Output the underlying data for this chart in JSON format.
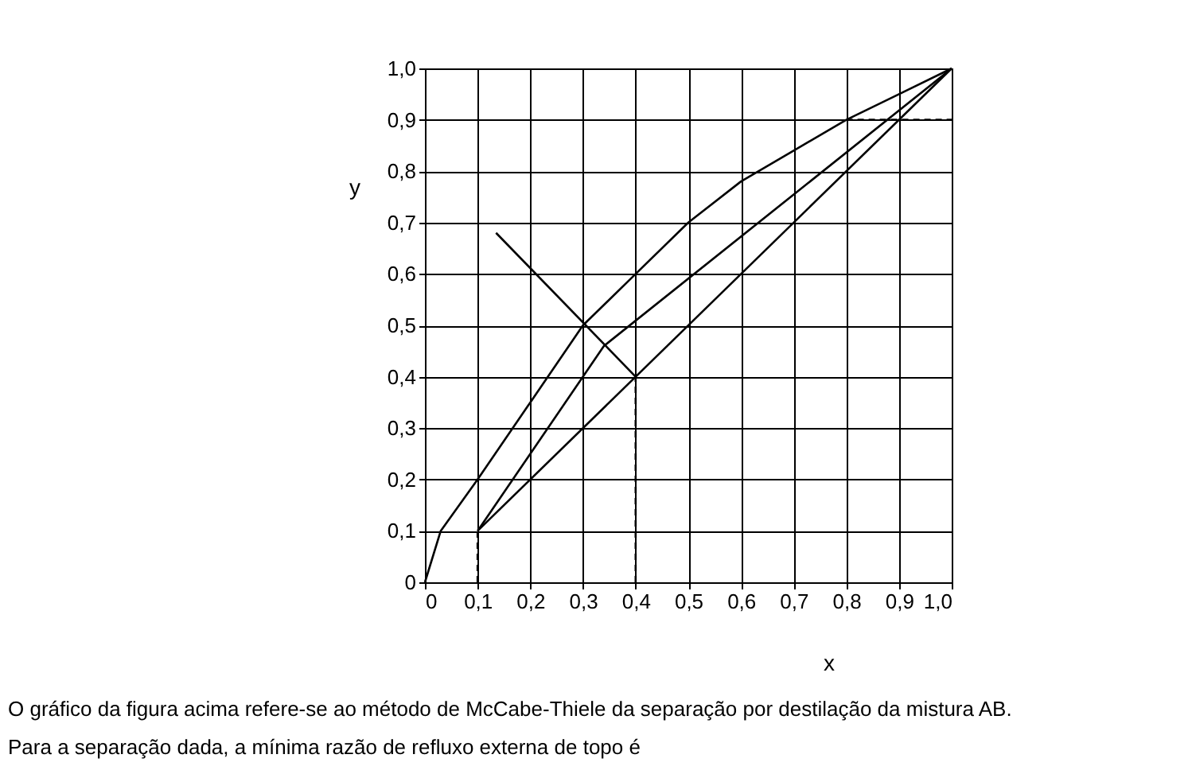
{
  "chart_data": {
    "type": "line",
    "xlabel": "x",
    "ylabel": "y",
    "xlim": [
      0,
      1
    ],
    "ylim": [
      0,
      1
    ],
    "xticks": [
      0,
      {
        "value": 0.1,
        "label": "0,1"
      },
      {
        "value": 0.2,
        "label": "0,2"
      },
      {
        "value": 0.3,
        "label": "0,3"
      },
      {
        "value": 0.4,
        "label": "0,4"
      },
      {
        "value": 0.5,
        "label": "0,5"
      },
      {
        "value": 0.6,
        "label": "0,6"
      },
      {
        "value": 0.7,
        "label": "0,7"
      },
      {
        "value": 0.8,
        "label": "0,8"
      },
      {
        "value": 0.9,
        "label": "0,9"
      },
      {
        "value": 1,
        "label": "1,0"
      }
    ],
    "yticks": [
      0,
      {
        "value": 0.1,
        "label": "0,1"
      },
      {
        "value": 0.2,
        "label": "0,2"
      },
      {
        "value": 0.3,
        "label": "0,3"
      },
      {
        "value": 0.4,
        "label": "0,4"
      },
      {
        "value": 0.5,
        "label": "0,5"
      },
      {
        "value": 0.6,
        "label": "0,6"
      },
      {
        "value": 0.7,
        "label": "0,7"
      },
      {
        "value": 0.8,
        "label": "0,8"
      },
      {
        "value": 0.9,
        "label": "0,9"
      },
      {
        "value": 1,
        "label": "1,0"
      }
    ],
    "grid": true,
    "marker": "none",
    "series": [
      {
        "color": "#000000",
        "line_style": "solid",
        "x": [
          0,
          0.03,
          0.1,
          0.2,
          0.3,
          0.4,
          0.5,
          0.6,
          0.7,
          0.8,
          0.9,
          1
        ],
        "values": [
          0,
          0.1,
          0.2,
          0.35,
          0.5,
          0.6,
          0.7,
          0.78,
          0.84,
          0.9,
          0.95,
          1
        ]
      },
      {
        "color": "#000000",
        "line_style": "solid",
        "x": [
          0.1,
          1
        ],
        "values": [
          0.1,
          1
        ]
      },
      {
        "color": "#000000",
        "line_style": "solid",
        "x": [
          0.1,
          0.34,
          1
        ],
        "values": [
          0.1,
          0.46,
          1
        ]
      },
      {
        "color": "#000000",
        "line_style": "solid",
        "x": [
          0.135,
          0.4
        ],
        "values": [
          0.68,
          0.4
        ]
      },
      {
        "color": "#000000",
        "line_style": "dashed",
        "x": [
          0.1,
          0.1
        ],
        "values": [
          0,
          0.1
        ]
      },
      {
        "color": "#000000",
        "line_style": "dashed",
        "x": [
          0.4,
          0.4
        ],
        "values": [
          0,
          0.4
        ]
      },
      {
        "color": "#000000",
        "line_style": "dashed",
        "x": [
          0.8,
          1
        ],
        "values": [
          0.9,
          0.9
        ]
      }
    ],
    "annotations": [
      "O gráfico da figura acima refere-se ao método de McCabe-Thiele da separação por destilação da mistura AB.",
      "Para a separação dada, a mínima razão de refluxo externa de topo é"
    ]
  }
}
